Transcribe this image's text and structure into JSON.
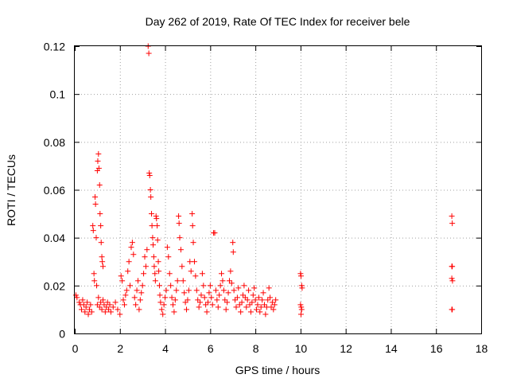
{
  "chart_data": {
    "type": "scatter",
    "title": "Day 262 of 2019, Rate Of TEC Index for receiver bele",
    "xlabel": "GPS time / hours",
    "ylabel": "ROTI / TECUs",
    "xlim": [
      0,
      18
    ],
    "ylim": [
      0,
      0.12
    ],
    "xticks": [
      0,
      2,
      4,
      6,
      8,
      10,
      12,
      14,
      16,
      18
    ],
    "yticks": [
      0,
      0.02,
      0.04,
      0.06,
      0.08,
      0.1,
      0.12
    ],
    "xtick_labels": [
      "0",
      "2",
      "4",
      "6",
      "8",
      "10",
      "12",
      "14",
      "16",
      "18"
    ],
    "ytick_labels": [
      "0",
      "0.02",
      "0.04",
      "0.06",
      "0.08",
      "0.1",
      "0.12"
    ],
    "grid": true,
    "marker": "+",
    "color": "#ff0000",
    "series": [
      {
        "points": [
          [
            0.05,
            0.016
          ],
          [
            0.1,
            0.015
          ],
          [
            0.2,
            0.013
          ],
          [
            0.25,
            0.012
          ],
          [
            0.3,
            0.01
          ],
          [
            0.35,
            0.014
          ],
          [
            0.4,
            0.012
          ],
          [
            0.45,
            0.009
          ],
          [
            0.5,
            0.011
          ],
          [
            0.55,
            0.013
          ],
          [
            0.6,
            0.008
          ],
          [
            0.65,
            0.01
          ],
          [
            0.7,
            0.012
          ],
          [
            0.75,
            0.009
          ],
          [
            0.8,
            0.045
          ],
          [
            0.82,
            0.043
          ],
          [
            0.85,
            0.025
          ],
          [
            0.87,
            0.022
          ],
          [
            0.9,
            0.057
          ],
          [
            0.92,
            0.054
          ],
          [
            0.95,
            0.04
          ],
          [
            0.97,
            0.02
          ],
          [
            1.0,
            0.068
          ],
          [
            1.02,
            0.072
          ],
          [
            1.05,
            0.075
          ],
          [
            1.07,
            0.069
          ],
          [
            1.1,
            0.062
          ],
          [
            1.12,
            0.05
          ],
          [
            1.15,
            0.045
          ],
          [
            1.17,
            0.038
          ],
          [
            1.2,
            0.032
          ],
          [
            1.22,
            0.03
          ],
          [
            1.25,
            0.028
          ],
          [
            1.0,
            0.012
          ],
          [
            1.05,
            0.015
          ],
          [
            1.1,
            0.011
          ],
          [
            1.15,
            0.013
          ],
          [
            1.2,
            0.01
          ],
          [
            1.25,
            0.014
          ],
          [
            1.3,
            0.012
          ],
          [
            1.35,
            0.009
          ],
          [
            1.4,
            0.011
          ],
          [
            1.45,
            0.013
          ],
          [
            1.5,
            0.01
          ],
          [
            1.55,
            0.012
          ],
          [
            1.6,
            0.009
          ],
          [
            1.7,
            0.011
          ],
          [
            1.8,
            0.013
          ],
          [
            1.9,
            0.01
          ],
          [
            2.0,
            0.008
          ],
          [
            2.05,
            0.024
          ],
          [
            2.1,
            0.022
          ],
          [
            2.15,
            0.014
          ],
          [
            2.2,
            0.012
          ],
          [
            2.25,
            0.016
          ],
          [
            2.3,
            0.018
          ],
          [
            2.35,
            0.026
          ],
          [
            2.4,
            0.03
          ],
          [
            2.45,
            0.02
          ],
          [
            2.5,
            0.036
          ],
          [
            2.55,
            0.038
          ],
          [
            2.6,
            0.033
          ],
          [
            2.65,
            0.015
          ],
          [
            2.7,
            0.012
          ],
          [
            2.75,
            0.018
          ],
          [
            2.8,
            0.022
          ],
          [
            2.85,
            0.01
          ],
          [
            2.9,
            0.014
          ],
          [
            2.95,
            0.017
          ],
          [
            3.0,
            0.02
          ],
          [
            3.05,
            0.025
          ],
          [
            3.1,
            0.032
          ],
          [
            3.15,
            0.028
          ],
          [
            3.2,
            0.035
          ],
          [
            3.25,
            0.12
          ],
          [
            3.28,
            0.117
          ],
          [
            3.3,
            0.067
          ],
          [
            3.32,
            0.066
          ],
          [
            3.35,
            0.06
          ],
          [
            3.37,
            0.057
          ],
          [
            3.4,
            0.05
          ],
          [
            3.42,
            0.045
          ],
          [
            3.45,
            0.04
          ],
          [
            3.47,
            0.037
          ],
          [
            3.5,
            0.032
          ],
          [
            3.52,
            0.028
          ],
          [
            3.55,
            0.025
          ],
          [
            3.57,
            0.022
          ],
          [
            3.6,
            0.049
          ],
          [
            3.62,
            0.048
          ],
          [
            3.65,
            0.045
          ],
          [
            3.67,
            0.039
          ],
          [
            3.7,
            0.03
          ],
          [
            3.72,
            0.026
          ],
          [
            3.75,
            0.02
          ],
          [
            3.77,
            0.016
          ],
          [
            3.8,
            0.013
          ],
          [
            3.85,
            0.01
          ],
          [
            3.9,
            0.008
          ],
          [
            3.95,
            0.012
          ],
          [
            4.0,
            0.015
          ],
          [
            4.05,
            0.018
          ],
          [
            4.1,
            0.036
          ],
          [
            4.15,
            0.032
          ],
          [
            4.2,
            0.025
          ],
          [
            4.25,
            0.02
          ],
          [
            4.3,
            0.015
          ],
          [
            4.35,
            0.012
          ],
          [
            4.4,
            0.009
          ],
          [
            4.45,
            0.014
          ],
          [
            4.5,
            0.018
          ],
          [
            4.55,
            0.022
          ],
          [
            4.6,
            0.049
          ],
          [
            4.62,
            0.046
          ],
          [
            4.65,
            0.04
          ],
          [
            4.7,
            0.035
          ],
          [
            4.75,
            0.028
          ],
          [
            4.8,
            0.022
          ],
          [
            4.85,
            0.017
          ],
          [
            4.9,
            0.013
          ],
          [
            4.95,
            0.01
          ],
          [
            5.0,
            0.014
          ],
          [
            5.05,
            0.018
          ],
          [
            5.1,
            0.03
          ],
          [
            5.15,
            0.026
          ],
          [
            5.2,
            0.05
          ],
          [
            5.22,
            0.045
          ],
          [
            5.25,
            0.038
          ],
          [
            5.3,
            0.03
          ],
          [
            5.35,
            0.024
          ],
          [
            5.4,
            0.018
          ],
          [
            5.45,
            0.014
          ],
          [
            5.5,
            0.011
          ],
          [
            5.55,
            0.013
          ],
          [
            5.6,
            0.016
          ],
          [
            5.65,
            0.025
          ],
          [
            5.7,
            0.02
          ],
          [
            5.75,
            0.015
          ],
          [
            5.8,
            0.012
          ],
          [
            5.85,
            0.009
          ],
          [
            5.9,
            0.013
          ],
          [
            5.95,
            0.017
          ],
          [
            6.0,
            0.02
          ],
          [
            6.05,
            0.015
          ],
          [
            6.1,
            0.012
          ],
          [
            6.15,
            0.042
          ],
          [
            6.2,
            0.042
          ],
          [
            6.25,
            0.018
          ],
          [
            6.3,
            0.014
          ],
          [
            6.35,
            0.011
          ],
          [
            6.4,
            0.016
          ],
          [
            6.45,
            0.02
          ],
          [
            6.5,
            0.025
          ],
          [
            6.55,
            0.022
          ],
          [
            6.6,
            0.018
          ],
          [
            6.65,
            0.014
          ],
          [
            6.7,
            0.01
          ],
          [
            6.75,
            0.013
          ],
          [
            6.8,
            0.017
          ],
          [
            6.85,
            0.022
          ],
          [
            6.9,
            0.026
          ],
          [
            6.95,
            0.021
          ],
          [
            7.0,
            0.038
          ],
          [
            7.02,
            0.034
          ],
          [
            7.05,
            0.018
          ],
          [
            7.1,
            0.014
          ],
          [
            7.15,
            0.011
          ],
          [
            7.2,
            0.015
          ],
          [
            7.25,
            0.019
          ],
          [
            7.3,
            0.012
          ],
          [
            7.35,
            0.009
          ],
          [
            7.4,
            0.013
          ],
          [
            7.45,
            0.016
          ],
          [
            7.5,
            0.02
          ],
          [
            7.55,
            0.015
          ],
          [
            7.6,
            0.011
          ],
          [
            7.65,
            0.014
          ],
          [
            7.7,
            0.018
          ],
          [
            7.75,
            0.012
          ],
          [
            7.8,
            0.009
          ],
          [
            7.85,
            0.013
          ],
          [
            7.9,
            0.016
          ],
          [
            7.95,
            0.019
          ],
          [
            8.0,
            0.014
          ],
          [
            8.05,
            0.01
          ],
          [
            8.1,
            0.012
          ],
          [
            8.15,
            0.015
          ],
          [
            8.2,
            0.009
          ],
          [
            8.25,
            0.011
          ],
          [
            8.3,
            0.014
          ],
          [
            8.35,
            0.017
          ],
          [
            8.4,
            0.012
          ],
          [
            8.45,
            0.008
          ],
          [
            8.5,
            0.011
          ],
          [
            8.55,
            0.014
          ],
          [
            8.6,
            0.019
          ],
          [
            8.65,
            0.015
          ],
          [
            8.7,
            0.011
          ],
          [
            8.75,
            0.013
          ],
          [
            8.8,
            0.01
          ],
          [
            8.85,
            0.012
          ],
          [
            8.9,
            0.014
          ],
          [
            10.0,
            0.025
          ],
          [
            10.02,
            0.024
          ],
          [
            10.05,
            0.02
          ],
          [
            10.07,
            0.019
          ],
          [
            10.0,
            0.012
          ],
          [
            10.03,
            0.011
          ],
          [
            10.05,
            0.01
          ],
          [
            10.02,
            0.008
          ],
          [
            16.7,
            0.049
          ],
          [
            16.72,
            0.046
          ],
          [
            16.7,
            0.028
          ],
          [
            16.72,
            0.028
          ],
          [
            16.7,
            0.023
          ],
          [
            16.73,
            0.022
          ],
          [
            16.7,
            0.01
          ],
          [
            16.72,
            0.01
          ]
        ]
      }
    ]
  }
}
